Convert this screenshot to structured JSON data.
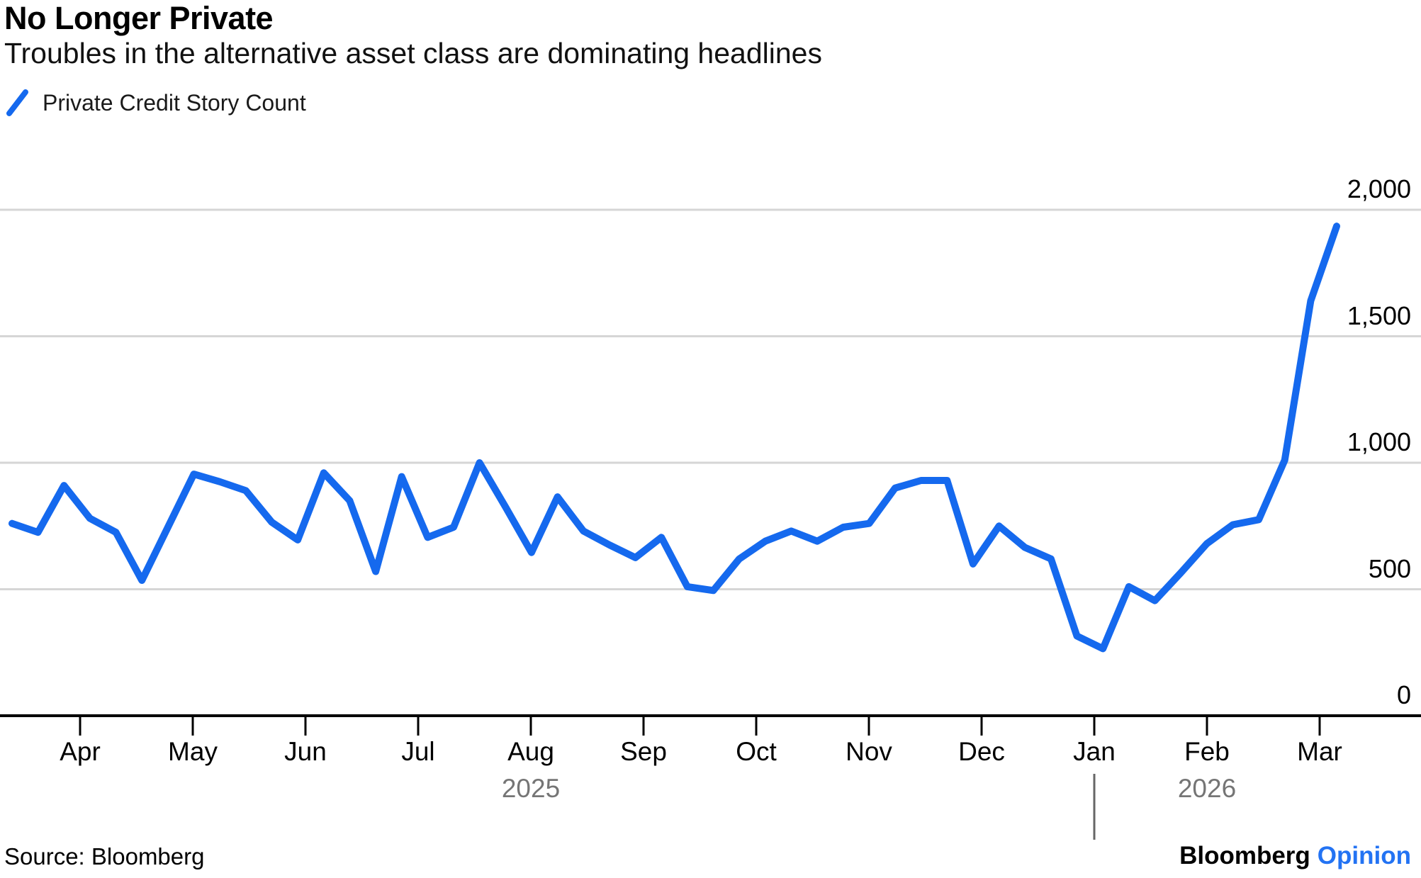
{
  "header": {
    "title": "No Longer Private",
    "subtitle": "Troubles in the alternative asset class are dominating headlines"
  },
  "legend": {
    "swatch_icon": "diagonal-line-icon",
    "series_label": "Private Credit Story Count"
  },
  "chart_data": {
    "type": "line",
    "title": "No Longer Private",
    "series": [
      {
        "name": "Private Credit Story Count",
        "values": [
          760,
          725,
          910,
          780,
          725,
          535,
          745,
          955,
          925,
          890,
          765,
          695,
          960,
          850,
          570,
          945,
          705,
          745,
          1000,
          825,
          645,
          865,
          730,
          675,
          625,
          705,
          510,
          495,
          620,
          690,
          730,
          690,
          745,
          760,
          900,
          930,
          930,
          600,
          750,
          665,
          620,
          315,
          265,
          510,
          455,
          565,
          680,
          755,
          775,
          1010,
          1640,
          1935
        ]
      }
    ],
    "x_unit": "weekly, mid-March 2025 through early March 2026",
    "x_tick_labels": [
      "Apr",
      "May",
      "Jun",
      "Jul",
      "Aug",
      "Sep",
      "Oct",
      "Nov",
      "Dec",
      "Jan",
      "Feb",
      "Mar"
    ],
    "year_labels": [
      {
        "text": "2025",
        "anchor_month_index": 4
      },
      {
        "text": "2026",
        "anchor_month_index": 10
      }
    ],
    "year_separator_month_index": 9,
    "y_ticks": [
      2000,
      1500,
      1000,
      500,
      0
    ],
    "y_tick_labels": [
      "2,000",
      "1,500",
      "1,000",
      "500",
      "0"
    ],
    "ylim": [
      0,
      2000
    ],
    "grid": "horizontal",
    "legend_position": "top-left"
  },
  "footer": {
    "source": "Source: Bloomberg",
    "brand": "Bloomberg",
    "brand_suffix": "Opinion"
  },
  "colors": {
    "line": "#1569EE",
    "opinion_blue": "#2373F3",
    "gridline": "#D6D6D6",
    "axis": "#000000",
    "tick": "#000000",
    "year_text": "#757575",
    "background": "#FFFFFF"
  }
}
